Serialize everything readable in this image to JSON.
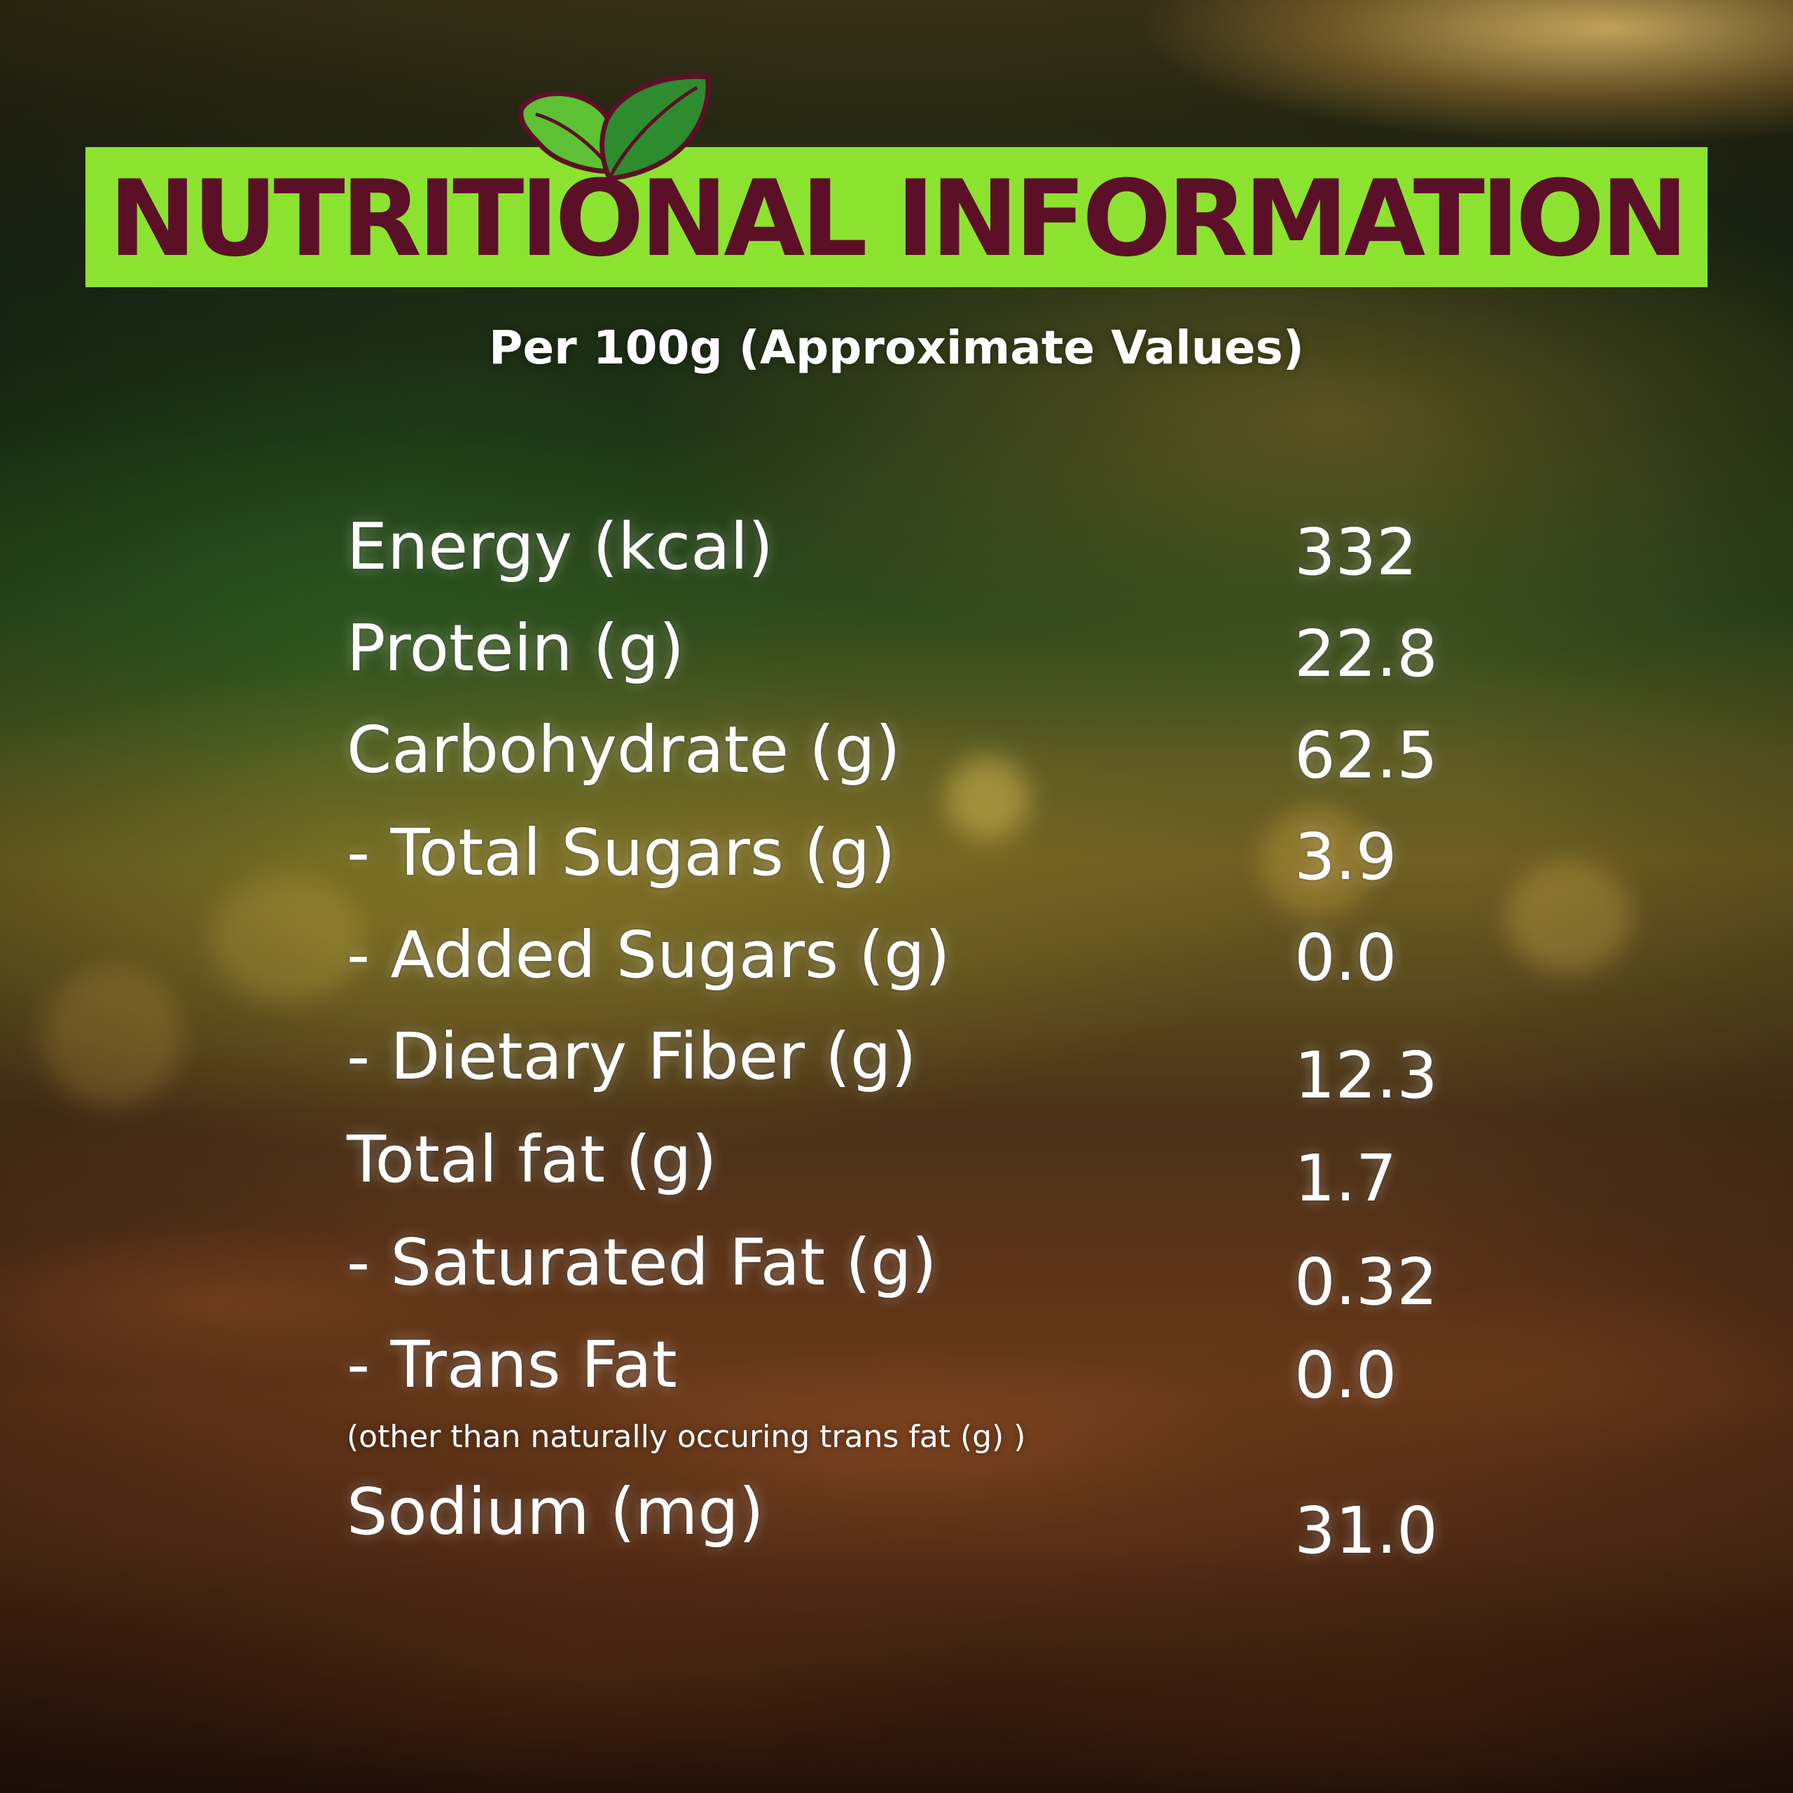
{
  "title": "NUTRITIONAL INFORMATION",
  "subtitle": "Per 100g (Approximate Values)",
  "colors": {
    "title_bar": "#8be330",
    "title_text": "#5c1028",
    "leaf_dark": "#2e8b2e",
    "leaf_light": "#5cc234",
    "leaf_outline": "#5c1028",
    "body_text": "#ffffff"
  },
  "icons": [
    "leaf-logo-icon"
  ],
  "nutrients": [
    {
      "label": "Energy (kcal)",
      "value": "332"
    },
    {
      "label": "Protein (g)",
      "value": "22.8"
    },
    {
      "label": "Carbohydrate (g)",
      "value": "62.5"
    },
    {
      "label": "- Total Sugars (g)",
      "value": "3.9"
    },
    {
      "label": "- Added Sugars (g)",
      "value": "0.0"
    },
    {
      "label": "- Dietary Fiber (g)",
      "value": "12.3"
    },
    {
      "label": "Total fat (g)",
      "value": "1.7"
    },
    {
      "label": "- Saturated Fat (g)",
      "value": "0.32"
    },
    {
      "label": "- Trans Fat",
      "value": "0.0"
    },
    {
      "label": "Sodium (mg)",
      "value": "31.0"
    }
  ],
  "trans_fat_note": "(other than naturally occuring trans fat (g) )"
}
